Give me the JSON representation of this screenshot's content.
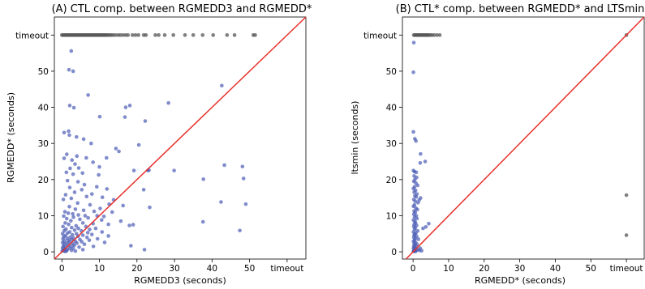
{
  "chart_data": [
    {
      "type": "scatter",
      "title": "(A) CTL comp. between RGMEDD3 and RGMEDD*",
      "xlabel": "RGMEDD3 (seconds)",
      "ylabel": "RGMEDD* (seconds)",
      "xlim": [
        -2,
        65
      ],
      "ylim": [
        -2,
        65
      ],
      "xticks": [
        0,
        10,
        20,
        30,
        40,
        50,
        60
      ],
      "xtick_labels": [
        "0",
        "10",
        "20",
        "30",
        "40",
        "50",
        "timeout"
      ],
      "yticks": [
        0,
        10,
        20,
        30,
        40,
        50,
        60
      ],
      "ytick_labels": [
        "0",
        "10",
        "20",
        "30",
        "40",
        "50",
        "timeout"
      ],
      "timeout_value": 60,
      "diagonal": {
        "color": "#e8312b"
      },
      "colors": {
        "point": "#4a5bb5",
        "timeout_point": "#555555"
      },
      "points": [
        [
          2.5,
          55.6
        ],
        [
          3.0,
          50.0
        ],
        [
          1.9,
          50.4
        ],
        [
          7.0,
          43.4
        ],
        [
          42.6,
          46.0
        ],
        [
          2.1,
          40.5
        ],
        [
          3.2,
          39.9
        ],
        [
          10.1,
          37.4
        ],
        [
          16.8,
          37.3
        ],
        [
          18.1,
          40.5
        ],
        [
          28.4,
          41.2
        ],
        [
          17.0,
          40.0
        ],
        [
          22.2,
          36.2
        ],
        [
          1.8,
          33.4
        ],
        [
          3.9,
          31.8
        ],
        [
          0.6,
          33.0
        ],
        [
          2.0,
          32.3
        ],
        [
          5.8,
          31.2
        ],
        [
          7.8,
          30.0
        ],
        [
          14.4,
          28.6
        ],
        [
          15.2,
          27.8
        ],
        [
          20.5,
          29.6
        ],
        [
          1.3,
          27.0
        ],
        [
          4.0,
          26.5
        ],
        [
          6.5,
          26.0
        ],
        [
          11.9,
          26.0
        ],
        [
          0.6,
          25.9
        ],
        [
          2.7,
          25.4
        ],
        [
          8.3,
          24.8
        ],
        [
          3.5,
          24.3
        ],
        [
          43.3,
          24.0
        ],
        [
          48.1,
          23.6
        ],
        [
          4.5,
          23.2
        ],
        [
          10.0,
          23.5
        ],
        [
          2.2,
          23.1
        ],
        [
          19.2,
          22.5
        ],
        [
          22.9,
          22.5
        ],
        [
          29.9,
          22.5
        ],
        [
          23.2,
          22.6
        ],
        [
          1.2,
          22.0
        ],
        [
          5.5,
          21.8
        ],
        [
          3.0,
          21.5
        ],
        [
          9.8,
          21.3
        ],
        [
          48.4,
          20.3
        ],
        [
          37.7,
          20.1
        ],
        [
          1.5,
          19.7
        ],
        [
          4.3,
          19.4
        ],
        [
          6.0,
          18.6
        ],
        [
          9.3,
          18.0
        ],
        [
          2.1,
          17.8
        ],
        [
          12.0,
          17.4
        ],
        [
          5.3,
          17.2
        ],
        [
          21.8,
          17.2
        ],
        [
          3.4,
          16.5
        ],
        [
          8.0,
          16.0
        ],
        [
          1.0,
          15.8
        ],
        [
          6.6,
          15.3
        ],
        [
          10.8,
          15.1
        ],
        [
          2.5,
          14.8
        ],
        [
          0.4,
          14.5
        ],
        [
          13.8,
          14.4
        ],
        [
          42.4,
          13.8
        ],
        [
          49.0,
          13.2
        ],
        [
          4.2,
          13.5
        ],
        [
          7.5,
          13.0
        ],
        [
          12.6,
          13.2
        ],
        [
          16.3,
          12.8
        ],
        [
          2.0,
          12.5
        ],
        [
          23.4,
          12.3
        ],
        [
          10.2,
          12.0
        ],
        [
          3.6,
          11.8
        ],
        [
          5.8,
          11.5
        ],
        [
          8.6,
          11.2
        ],
        [
          13.4,
          11.0
        ],
        [
          0.8,
          11.1
        ],
        [
          1.7,
          10.7
        ],
        [
          2.9,
          10.5
        ],
        [
          4.4,
          10.2
        ],
        [
          6.2,
          10.0
        ],
        [
          9.4,
          10.0
        ],
        [
          11.2,
          9.8
        ],
        [
          0.5,
          9.9
        ],
        [
          3.1,
          9.6
        ],
        [
          7.0,
          9.4
        ],
        [
          1.3,
          9.2
        ],
        [
          4.8,
          9.0
        ],
        [
          10.6,
          8.8
        ],
        [
          15.7,
          8.5
        ],
        [
          37.6,
          8.3
        ],
        [
          2.4,
          8.6
        ],
        [
          0.9,
          8.0
        ],
        [
          5.6,
          8.0
        ],
        [
          8.3,
          7.8
        ],
        [
          12.4,
          7.6
        ],
        [
          19.0,
          7.5
        ],
        [
          18.0,
          7.3
        ],
        [
          1.8,
          7.6
        ],
        [
          3.8,
          7.2
        ],
        [
          6.4,
          7.0
        ],
        [
          0.3,
          7.0
        ],
        [
          2.6,
          6.7
        ],
        [
          4.4,
          6.5
        ],
        [
          9.0,
          6.5
        ],
        [
          1.1,
          6.3
        ],
        [
          7.4,
          6.2
        ],
        [
          47.4,
          5.9
        ],
        [
          3.4,
          6.0
        ],
        [
          5.2,
          5.8
        ],
        [
          0.6,
          5.8
        ],
        [
          2.1,
          5.5
        ],
        [
          10.7,
          5.5
        ],
        [
          6.9,
          5.3
        ],
        [
          1.5,
          5.2
        ],
        [
          3.9,
          5.0
        ],
        [
          0.2,
          5.0
        ],
        [
          8.0,
          4.8
        ],
        [
          5.6,
          4.6
        ],
        [
          2.8,
          4.7
        ],
        [
          1.0,
          4.5
        ],
        [
          12.4,
          4.4
        ],
        [
          4.3,
          4.3
        ],
        [
          0.5,
          4.2
        ],
        [
          2.2,
          4.0
        ],
        [
          6.7,
          4.0
        ],
        [
          3.1,
          3.8
        ],
        [
          1.4,
          3.7
        ],
        [
          9.5,
          3.6
        ],
        [
          0.3,
          3.6
        ],
        [
          4.8,
          3.4
        ],
        [
          2.6,
          3.4
        ],
        [
          7.3,
          3.2
        ],
        [
          1.8,
          3.1
        ],
        [
          0.7,
          3.0
        ],
        [
          3.6,
          2.9
        ],
        [
          5.3,
          2.8
        ],
        [
          2.0,
          2.7
        ],
        [
          11.4,
          2.6
        ],
        [
          0.2,
          2.6
        ],
        [
          1.2,
          2.4
        ],
        [
          4.0,
          2.4
        ],
        [
          2.9,
          2.2
        ],
        [
          0.6,
          2.1
        ],
        [
          6.0,
          2.1
        ],
        [
          1.6,
          1.9
        ],
        [
          18.4,
          1.7
        ],
        [
          3.3,
          1.8
        ],
        [
          0.4,
          1.6
        ],
        [
          2.4,
          1.5
        ],
        [
          8.4,
          1.5
        ],
        [
          1.0,
          1.3
        ],
        [
          4.6,
          1.3
        ],
        [
          0.2,
          1.1
        ],
        [
          2.0,
          1.0
        ],
        [
          3.0,
          1.0
        ],
        [
          22.0,
          0.6
        ],
        [
          0.8,
          0.8
        ],
        [
          1.5,
          0.6
        ],
        [
          0.3,
          0.5
        ],
        [
          5.6,
          0.6
        ],
        [
          2.6,
          0.4
        ],
        [
          0.6,
          0.3
        ],
        [
          1.2,
          0.2
        ],
        [
          0.1,
          0.2
        ],
        [
          3.6,
          0.2
        ],
        [
          0.9,
          0.1
        ]
      ],
      "timeout_points_x": [
        0.0,
        0.3,
        0.6,
        0.9,
        1.2,
        1.5,
        1.8,
        2.1,
        2.4,
        2.7,
        3.0,
        3.3,
        3.6,
        3.9,
        4.2,
        4.5,
        4.8,
        5.1,
        5.4,
        5.7,
        6.0,
        6.3,
        6.6,
        6.9,
        7.2,
        7.5,
        7.8,
        8.1,
        8.4,
        8.7,
        9.0,
        9.3,
        9.6,
        9.9,
        10.2,
        10.5,
        10.8,
        11.1,
        11.4,
        11.7,
        12.0,
        12.4,
        12.8,
        13.2,
        13.7,
        14.3,
        15.0,
        15.6,
        16.3,
        17.0,
        17.6,
        18.8,
        19.6,
        20.4,
        21.8,
        22.4,
        24.9,
        25.8,
        27.4,
        29.7,
        32.8,
        35.0,
        37.5,
        40.3,
        44.0,
        46.0,
        51.0,
        51.5
      ]
    },
    {
      "type": "scatter",
      "title": "(B) CTL* comp. between RGMEDD* and LTSmin",
      "xlabel": "RGMEDD* (seconds)",
      "ylabel": "ltsmin (seconds)",
      "xlim": [
        -3,
        65
      ],
      "ylim": [
        -2,
        65
      ],
      "xticks": [
        0,
        10,
        20,
        30,
        40,
        50,
        60
      ],
      "xtick_labels": [
        "0",
        "10",
        "20",
        "30",
        "40",
        "50",
        "timeout"
      ],
      "yticks": [
        0,
        10,
        20,
        30,
        40,
        50,
        60
      ],
      "ytick_labels": [
        "0",
        "10",
        "20",
        "30",
        "40",
        "50",
        "timeout"
      ],
      "timeout_value": 60,
      "diagonal": {
        "color": "#e8312b"
      },
      "colors": {
        "point": "#4a5bb5",
        "timeout_point": "#555555"
      },
      "points": [
        [
          0.2,
          57.9
        ],
        [
          0.1,
          49.7
        ],
        [
          0.1,
          33.2
        ],
        [
          0.5,
          31.3
        ],
        [
          0.8,
          30.7
        ],
        [
          2.1,
          27.1
        ],
        [
          3.4,
          25.0
        ],
        [
          2.0,
          24.6
        ],
        [
          0.1,
          22.5
        ],
        [
          0.4,
          22.2
        ],
        [
          0.9,
          22.0
        ],
        [
          0.3,
          21.0
        ],
        [
          1.0,
          20.6
        ],
        [
          0.5,
          20.0
        ],
        [
          0.2,
          19.5
        ],
        [
          0.8,
          19.0
        ],
        [
          1.3,
          18.4
        ],
        [
          0.4,
          18.0
        ],
        [
          0.1,
          17.5
        ],
        [
          0.7,
          17.0
        ],
        [
          0.3,
          16.5
        ],
        [
          1.1,
          16.0
        ],
        [
          0.5,
          15.5
        ],
        [
          0.9,
          15.2
        ],
        [
          2.1,
          14.9
        ],
        [
          0.2,
          14.5
        ],
        [
          0.6,
          14.0
        ],
        [
          1.4,
          13.6
        ],
        [
          0.4,
          13.0
        ],
        [
          0.1,
          12.6
        ],
        [
          0.8,
          12.1
        ],
        [
          1.2,
          11.7
        ],
        [
          0.3,
          11.3
        ],
        [
          0.6,
          10.9
        ],
        [
          1.7,
          14.3
        ],
        [
          0.2,
          10.4
        ],
        [
          0.9,
          10.0
        ],
        [
          0.4,
          9.6
        ],
        [
          1.1,
          9.2
        ],
        [
          0.1,
          8.8
        ],
        [
          0.5,
          8.4
        ],
        [
          0.7,
          8.0
        ],
        [
          0.3,
          7.6
        ],
        [
          1.0,
          7.3
        ],
        [
          4.4,
          7.8
        ],
        [
          2.8,
          6.5
        ],
        [
          3.6,
          6.9
        ],
        [
          0.2,
          7.0
        ],
        [
          0.6,
          6.6
        ],
        [
          0.4,
          6.2
        ],
        [
          1.3,
          5.8
        ],
        [
          0.1,
          5.5
        ],
        [
          0.8,
          5.2
        ],
        [
          0.5,
          4.9
        ],
        [
          0.3,
          4.6
        ],
        [
          1.0,
          4.3
        ],
        [
          0.2,
          4.0
        ],
        [
          0.6,
          3.7
        ],
        [
          1.5,
          3.5
        ],
        [
          0.4,
          3.2
        ],
        [
          0.1,
          2.9
        ],
        [
          0.7,
          2.6
        ],
        [
          0.3,
          2.3
        ],
        [
          1.1,
          2.1
        ],
        [
          0.5,
          1.9
        ],
        [
          0.2,
          1.6
        ],
        [
          0.9,
          1.4
        ],
        [
          0.4,
          1.2
        ],
        [
          0.1,
          1.0
        ],
        [
          0.6,
          0.8
        ],
        [
          1.3,
          0.6
        ],
        [
          0.3,
          0.5
        ],
        [
          0.8,
          0.4
        ],
        [
          0.2,
          0.3
        ],
        [
          0.5,
          0.2
        ],
        [
          1.8,
          0.4
        ],
        [
          0.1,
          0.1
        ],
        [
          2.0,
          1.0
        ],
        [
          0.7,
          0.1
        ],
        [
          2.4,
          0.3
        ]
      ],
      "timeout_points": [
        [
          0.2,
          60
        ],
        [
          0.5,
          60
        ],
        [
          0.8,
          60
        ],
        [
          1.1,
          60
        ],
        [
          1.4,
          60
        ],
        [
          1.7,
          60
        ],
        [
          2.0,
          60
        ],
        [
          2.3,
          60
        ],
        [
          2.6,
          60
        ],
        [
          2.9,
          60
        ],
        [
          3.2,
          60
        ],
        [
          3.5,
          60
        ],
        [
          3.8,
          60
        ],
        [
          4.1,
          60
        ],
        [
          4.4,
          60
        ],
        [
          4.8,
          60
        ],
        [
          5.3,
          60
        ],
        [
          5.9,
          60
        ],
        [
          6.7,
          60
        ],
        [
          7.5,
          60
        ],
        [
          60,
          60
        ],
        [
          60,
          15.7
        ],
        [
          60,
          4.6
        ]
      ]
    }
  ]
}
